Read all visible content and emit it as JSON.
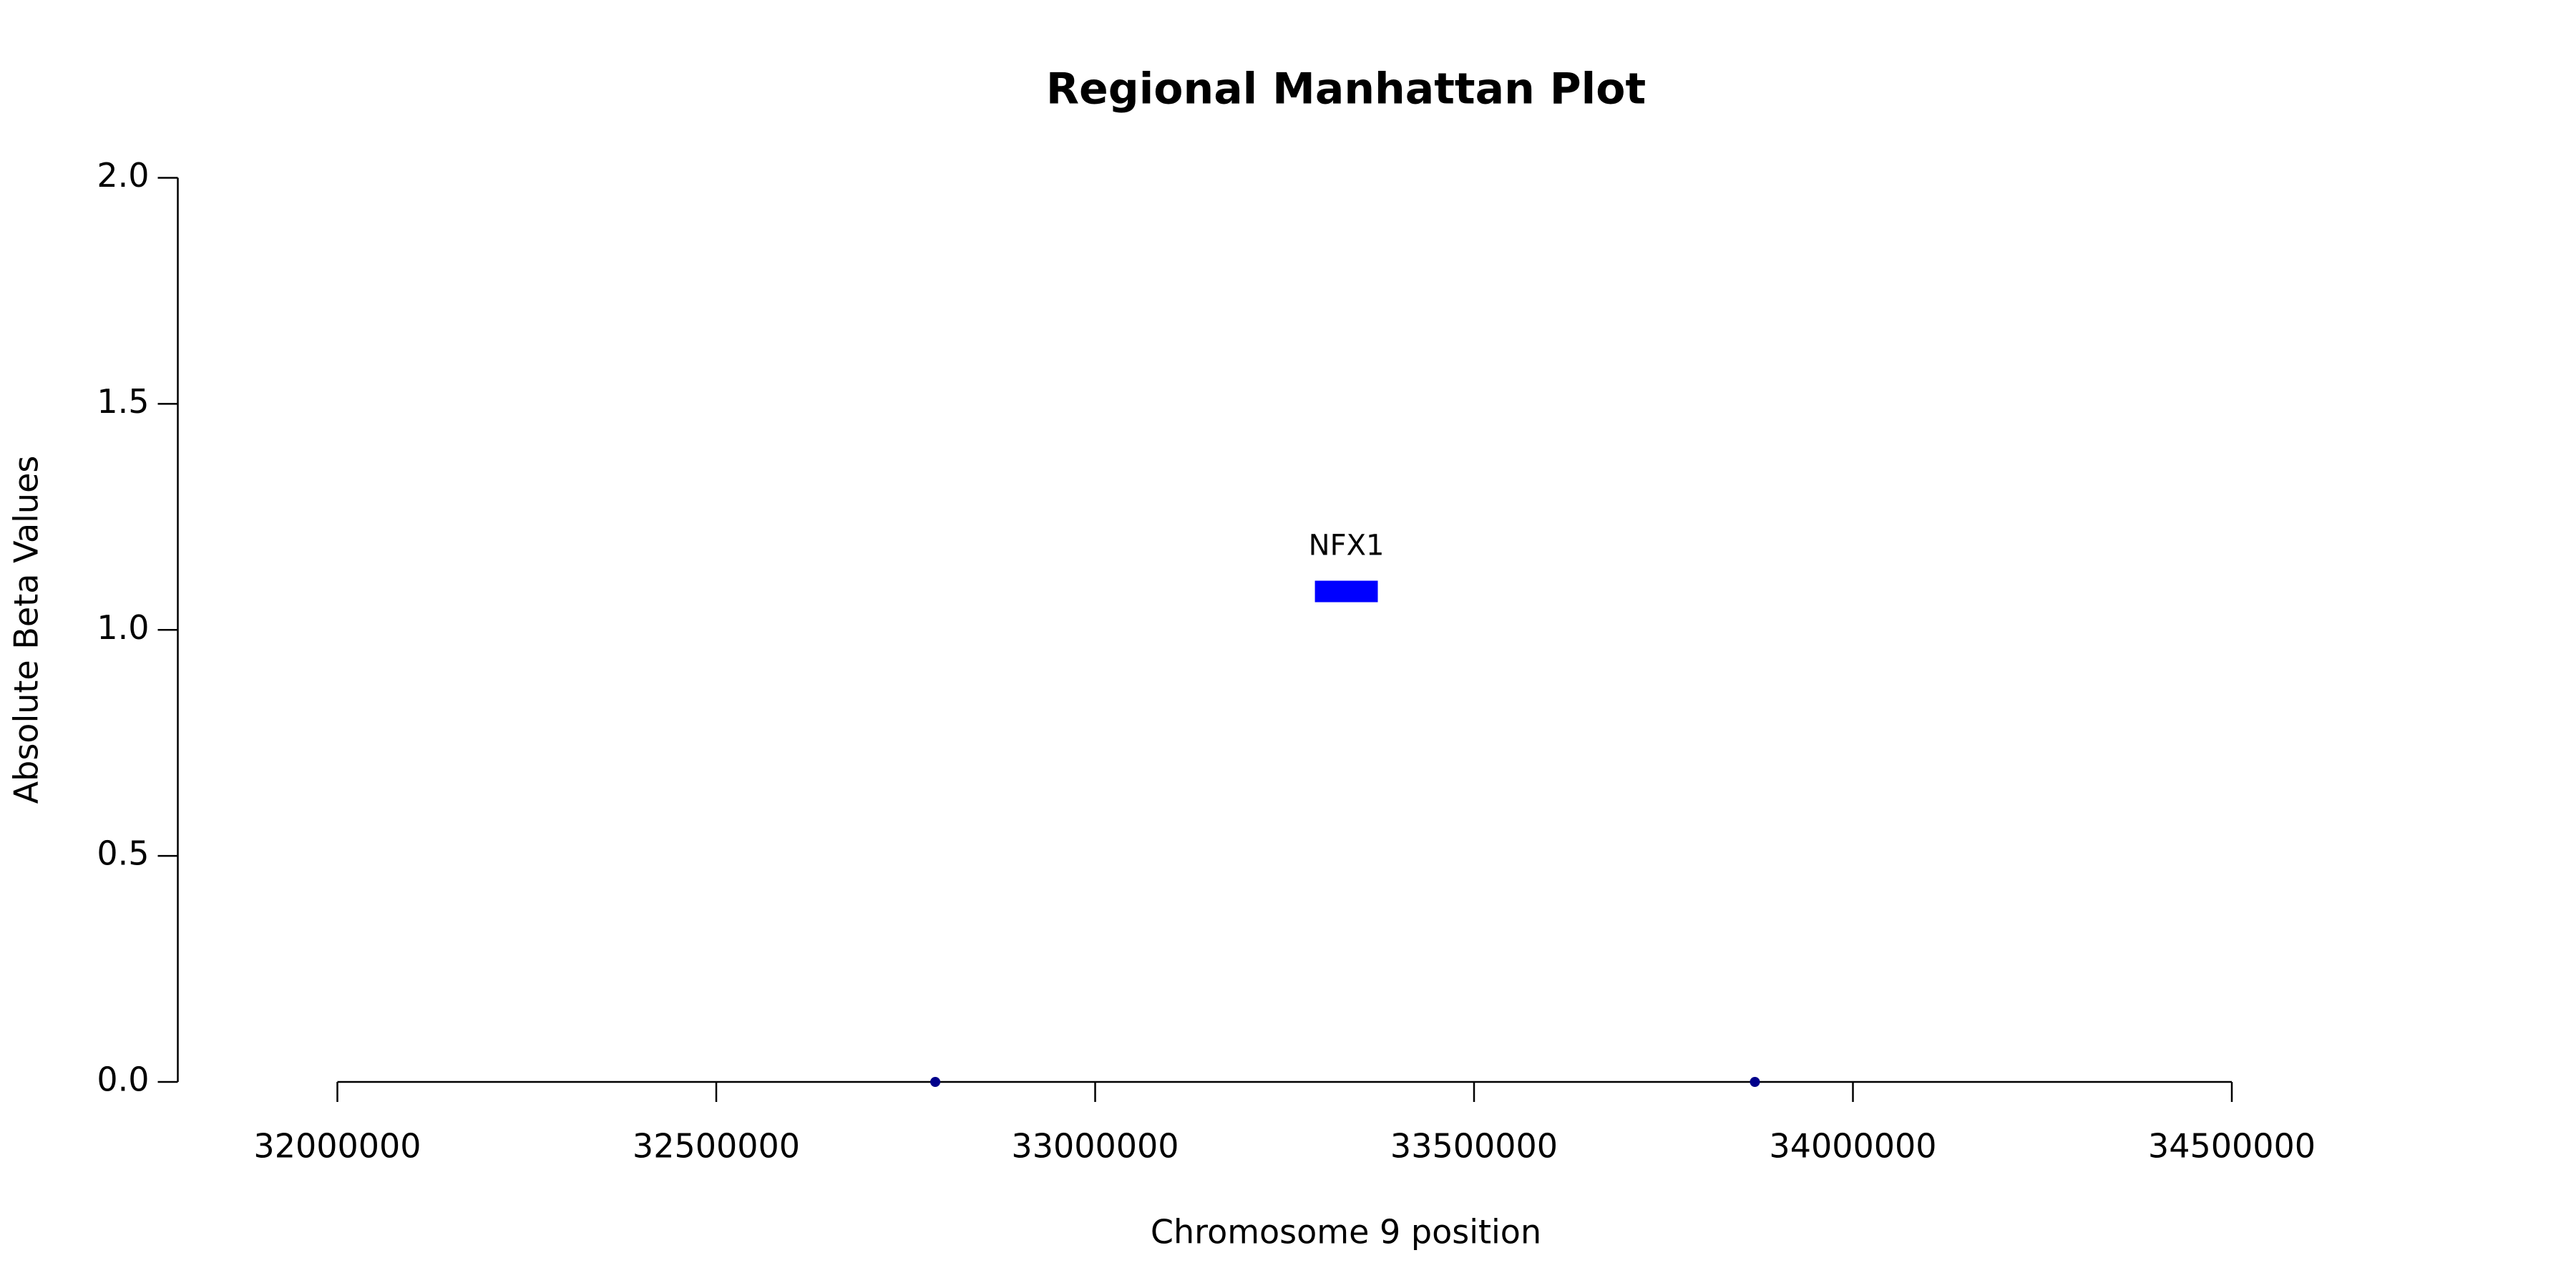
{
  "chart_data": {
    "type": "scatter",
    "title": "Regional Manhattan Plot",
    "x_label": "Chromosome 9 position",
    "y_label": "Absolute Beta Values",
    "series": [
      {
        "color": "#00008b",
        "x": [
          32789000,
          33870600
        ],
        "values": [
          0,
          0
        ]
      }
    ],
    "genes": [
      {
        "label": "NFX1",
        "start": 33290000,
        "end": 33373000,
        "y": 1.085,
        "color": "#0000ff"
      }
    ],
    "xlim": [
      32000000,
      34500000
    ],
    "xticks": [
      32000000,
      32500000,
      33000000,
      33500000,
      34000000,
      34500000
    ],
    "ylim": [
      0,
      2
    ],
    "yticks": [
      {
        "value": 0,
        "label": "0.0"
      },
      {
        "value": 0.5,
        "label": "0.5"
      },
      {
        "value": 1,
        "label": "1.0"
      },
      {
        "value": 1.5,
        "label": "1.5"
      },
      {
        "value": 2,
        "label": "2.0"
      }
    ],
    "grid": false
  }
}
